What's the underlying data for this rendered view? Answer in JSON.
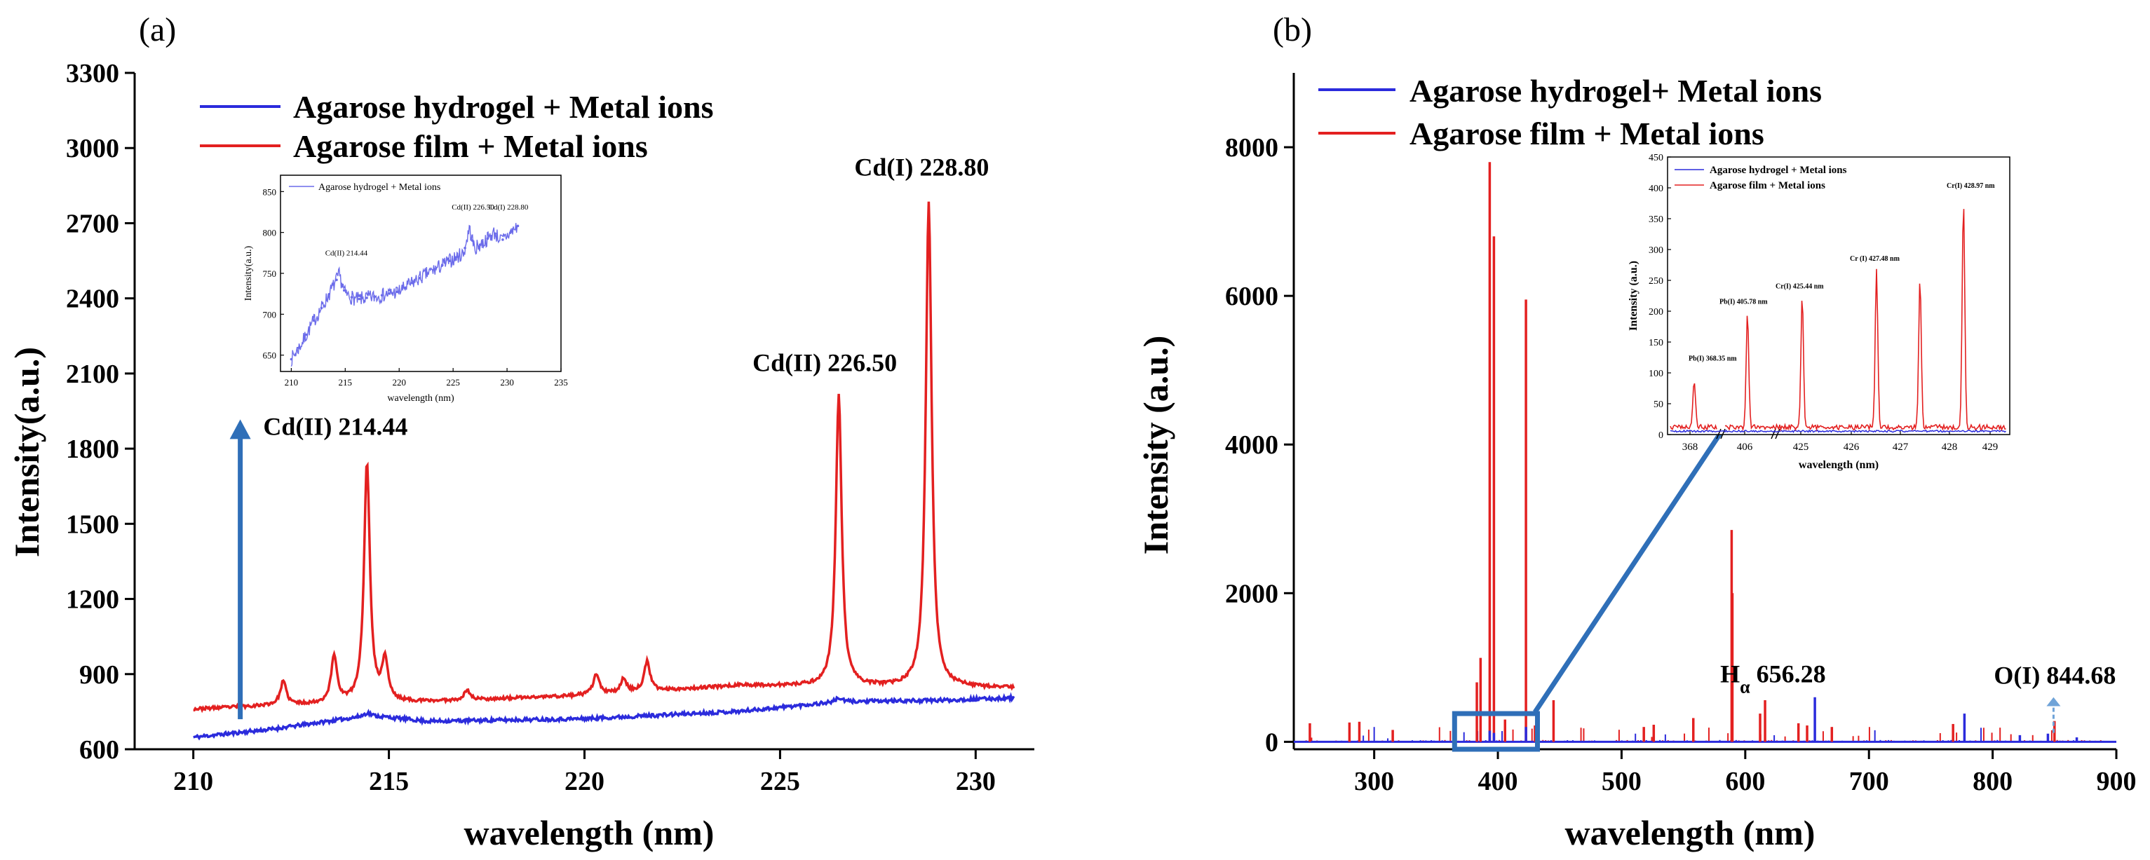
{
  "chart_data": [
    {
      "panel_label": "(a)",
      "type": "line",
      "xlabel": "wavelength (nm)",
      "ylabel": "Intensity(a.u.)",
      "xlim": [
        208.5,
        231.5
      ],
      "ylim": [
        600,
        3300
      ],
      "xticks": [
        210,
        215,
        220,
        225,
        230
      ],
      "yticks": [
        600,
        900,
        1200,
        1500,
        1800,
        2100,
        2400,
        2700,
        3000,
        3300
      ],
      "series": [
        {
          "name": "Agarose hydrogel + Metal ions",
          "color": "#2b2bdc",
          "baseline": [
            [
              210,
              648
            ],
            [
              212,
              680
            ],
            [
              214.5,
              735
            ],
            [
              216,
              712
            ],
            [
              220,
              722
            ],
            [
              224,
              752
            ],
            [
              226.5,
              790
            ],
            [
              229,
              795
            ],
            [
              231,
              805
            ]
          ],
          "peaks": [
            [
              214.44,
              745
            ],
            [
              226.5,
              805
            ]
          ]
        },
        {
          "name": "Agarose film + Metal ions",
          "color": "#e32020",
          "baseline": [
            [
              210,
              760
            ],
            [
              212,
              775
            ],
            [
              216,
              790
            ],
            [
              220,
              815
            ],
            [
              224,
              855
            ],
            [
              229,
              845
            ],
            [
              231,
              845
            ]
          ],
          "peaks": [
            [
              212.3,
              870
            ],
            [
              213.6,
              970
            ],
            [
              214.44,
              1740
            ],
            [
              214.9,
              950
            ],
            [
              217.0,
              835
            ],
            [
              220.3,
              900
            ],
            [
              221.0,
              880
            ],
            [
              221.6,
              950
            ],
            [
              226.5,
              2010
            ],
            [
              227.4,
              850
            ],
            [
              228.8,
              2780
            ],
            [
              229.6,
              850
            ]
          ]
        }
      ],
      "annotations": [
        {
          "text": "Cd(II) 214.44",
          "x": 214.44,
          "y": 1740
        },
        {
          "text": "Cd(II) 226.50",
          "x": 226.5,
          "y": 2010
        },
        {
          "text": "Cd(I) 228.80",
          "x": 228.8,
          "y": 2780
        }
      ],
      "arrow": {
        "x": 211.2,
        "from_y": 720,
        "to_y": 1900
      },
      "inset": {
        "legend": "Agarose hydrogel + Metal ions",
        "xlabel": "wavelength (nm)",
        "ylabel": "Intensity(a.u.)",
        "xlim": [
          209,
          235
        ],
        "ylim": [
          630,
          870
        ],
        "xticks": [
          210,
          215,
          220,
          225,
          230,
          235
        ],
        "yticks": [
          650,
          700,
          750,
          800,
          850
        ],
        "color": "#6b6bea",
        "baseline": [
          [
            210,
            645
          ],
          [
            211,
            665
          ],
          [
            212,
            690
          ],
          [
            213,
            712
          ],
          [
            214.44,
            748
          ],
          [
            215,
            725
          ],
          [
            216,
            718
          ],
          [
            218,
            722
          ],
          [
            220,
            728
          ],
          [
            222,
            745
          ],
          [
            224,
            760
          ],
          [
            226,
            775
          ],
          [
            226.5,
            805
          ],
          [
            227,
            780
          ],
          [
            228,
            790
          ],
          [
            228.8,
            800
          ],
          [
            229.5,
            790
          ],
          [
            231,
            808
          ]
        ],
        "annotations": [
          {
            "text": "Cd(II) 214.44",
            "x": 214.44,
            "y": 748
          },
          {
            "text": "Cd(II) 226.50",
            "x": 226.5,
            "y": 810
          },
          {
            "text": "Cd(I) 228.80",
            "x": 228.8,
            "y": 808
          }
        ]
      }
    },
    {
      "panel_label": "(b)",
      "type": "line",
      "xlabel": "wavelength (nm)",
      "ylabel": "Intensity (a.u.)",
      "xlim": [
        235,
        900
      ],
      "ylim": [
        -100,
        9000
      ],
      "xticks": [
        300,
        400,
        500,
        600,
        700,
        800,
        900
      ],
      "yticks": [
        0,
        2000,
        4000,
        6000,
        8000
      ],
      "series": [
        {
          "name": "Agarose hydrogel+ Metal ions",
          "color": "#2b2bdc",
          "lines": [
            [
              393.4,
              150
            ],
            [
              396.8,
              120
            ],
            [
              422.7,
              200
            ],
            [
              656.28,
              600
            ],
            [
              777.2,
              380
            ],
            [
              822,
              90
            ],
            [
              844.68,
              110
            ],
            [
              868,
              60
            ]
          ]
        },
        {
          "name": "Agarose film + Metal ions",
          "color": "#e32020",
          "lines": [
            [
              248,
              250
            ],
            [
              280,
              260
            ],
            [
              288,
              270
            ],
            [
              315,
              160
            ],
            [
              383,
              800
            ],
            [
              386,
              1130
            ],
            [
              393.4,
              7800
            ],
            [
              396.8,
              6800
            ],
            [
              405.78,
              300
            ],
            [
              422.7,
              5950
            ],
            [
              430,
              220
            ],
            [
              445,
              560
            ],
            [
              518,
              200
            ],
            [
              526,
              230
            ],
            [
              558,
              320
            ],
            [
              588.99,
              2850
            ],
            [
              589.59,
              2000
            ],
            [
              612,
              380
            ],
            [
              616,
              560
            ],
            [
              643,
              250
            ],
            [
              650,
              220
            ],
            [
              670,
              200
            ],
            [
              768,
              240
            ],
            [
              850,
              280
            ]
          ]
        }
      ],
      "annotations": [
        {
          "text": "H",
          "sub": "α",
          "value": " 656.28",
          "x": 656.28,
          "y": 600
        },
        {
          "text": "O(I) 844.68",
          "x": 844.68,
          "y": 110
        }
      ],
      "inset": {
        "legend": [
          "Agarose hydrogel + Metal ions",
          "Agarose film + Metal ions"
        ],
        "xlabel": "wavelength (nm)",
        "ylabel": "Intensity (a.u.)",
        "ylim": [
          0,
          450
        ],
        "yticks": [
          0,
          50,
          100,
          150,
          200,
          250,
          300,
          350,
          400,
          450
        ],
        "xticks": [
          "368",
          "406",
          "425",
          "426",
          "427",
          "428",
          "429"
        ],
        "peaks": [
          {
            "x": 368.35,
            "y": 75,
            "label": "Pb(I) 368.35 nm"
          },
          {
            "x": 405.78,
            "y": 185,
            "label": "Pb(I) 405.78 nm"
          },
          {
            "x": 425.44,
            "y": 210,
            "label": "Cr(I) 425.44 nm"
          },
          {
            "x": 427.48,
            "y": 255,
            "label": "Cr (I) 427.48 nm"
          },
          {
            "x": 428.2,
            "y": 240,
            "label": ""
          },
          {
            "x": 428.97,
            "y": 370,
            "label": "Cr(I) 428.97 nm"
          }
        ]
      }
    }
  ]
}
